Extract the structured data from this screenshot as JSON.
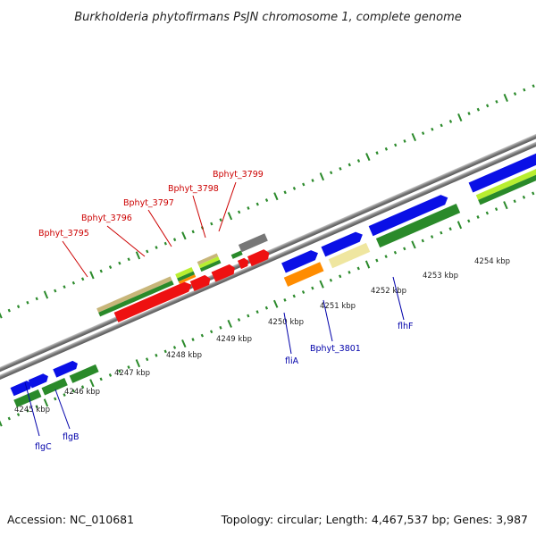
{
  "title": "Burkholderia phytofirmans PsJN chromosome 1, complete genome",
  "footer": {
    "accession": "Accession: NC_010681",
    "summary": "Topology: circular; Length: 4,467,537 bp; Genes: 3,987"
  },
  "colors": {
    "backbone": "#8c8c8c",
    "tick_outer": "#2b8a2b",
    "tick_inner": "#2b8a2b",
    "label_red": "#cc0000",
    "label_blue": "#0000aa",
    "gene_blue": "#0a10e6",
    "gene_green": "#2a8a2a",
    "gene_red": "#ee1111",
    "gene_orange": "#ff8c00",
    "gene_khaki": "#c8b67a",
    "gene_lightyellow": "#efe6a0",
    "gene_lime": "#b8ee30",
    "gene_gray": "#777777"
  },
  "kbp_ticks": [
    {
      "label": "4245 kbp"
    },
    {
      "label": "4246 kbp"
    },
    {
      "label": "4247 kbp"
    },
    {
      "label": "4248 kbp"
    },
    {
      "label": "4249 kbp"
    },
    {
      "label": "4250 kbp"
    },
    {
      "label": "4251 kbp"
    },
    {
      "label": "4252 kbp"
    },
    {
      "label": "4253 kbp"
    },
    {
      "label": "4254 kbp"
    }
  ],
  "gene_labels": [
    {
      "name": "Bphyt_3795",
      "color": "label_red"
    },
    {
      "name": "Bphyt_3796",
      "color": "label_red"
    },
    {
      "name": "Bphyt_3797",
      "color": "label_red"
    },
    {
      "name": "Bphyt_3798",
      "color": "label_red"
    },
    {
      "name": "Bphyt_3799",
      "color": "label_red"
    },
    {
      "name": "fliA",
      "color": "label_blue"
    },
    {
      "name": "Bphyt_3801",
      "color": "label_blue"
    },
    {
      "name": "flhF",
      "color": "label_blue"
    },
    {
      "name": "flgC",
      "color": "label_blue"
    },
    {
      "name": "flgB",
      "color": "label_blue"
    }
  ],
  "genes": [
    {
      "name": "gene-a-blue",
      "color": "gene_blue"
    },
    {
      "name": "gene-b-blue",
      "color": "gene_blue"
    },
    {
      "name": "gene-c-blue",
      "color": "gene_blue"
    },
    {
      "name": "gene-a-green",
      "color": "gene_green"
    },
    {
      "name": "gene-b-green",
      "color": "gene_green"
    },
    {
      "name": "gene-c-green",
      "color": "gene_green"
    },
    {
      "name": "bphyt-3795-khaki",
      "color": "gene_khaki"
    },
    {
      "name": "bphyt-3795-green",
      "color": "gene_green"
    },
    {
      "name": "bphyt-3795-red",
      "color": "gene_red"
    },
    {
      "name": "bphyt-3796-lime",
      "color": "gene_lime"
    },
    {
      "name": "bphyt-3796-green",
      "color": "gene_green"
    },
    {
      "name": "bphyt-3796-orange",
      "color": "gene_orange"
    },
    {
      "name": "bphyt-3796-red",
      "color": "gene_red"
    },
    {
      "name": "bphyt-3797-khaki",
      "color": "gene_khaki"
    },
    {
      "name": "bphyt-3797-lime",
      "color": "gene_lime"
    },
    {
      "name": "bphyt-3797-green",
      "color": "gene_green"
    },
    {
      "name": "bphyt-3797-red",
      "color": "gene_red"
    },
    {
      "name": "bphyt-3798-green",
      "color": "gene_green"
    },
    {
      "name": "bphyt-3798-red",
      "color": "gene_red"
    },
    {
      "name": "bphyt-3799-gray",
      "color": "gene_gray"
    },
    {
      "name": "bphyt-3799-red",
      "color": "gene_red"
    },
    {
      "name": "flia-blue",
      "color": "gene_blue"
    },
    {
      "name": "flia-orange",
      "color": "gene_orange"
    },
    {
      "name": "bphyt-3801-blue",
      "color": "gene_blue"
    },
    {
      "name": "bphyt-3801-yellow",
      "color": "gene_lightyellow"
    },
    {
      "name": "flhf-blue",
      "color": "gene_blue"
    },
    {
      "name": "flhf-green",
      "color": "gene_green"
    },
    {
      "name": "right-blue",
      "color": "gene_blue"
    },
    {
      "name": "right-lime",
      "color": "gene_lime"
    },
    {
      "name": "right-green",
      "color": "gene_green"
    }
  ]
}
